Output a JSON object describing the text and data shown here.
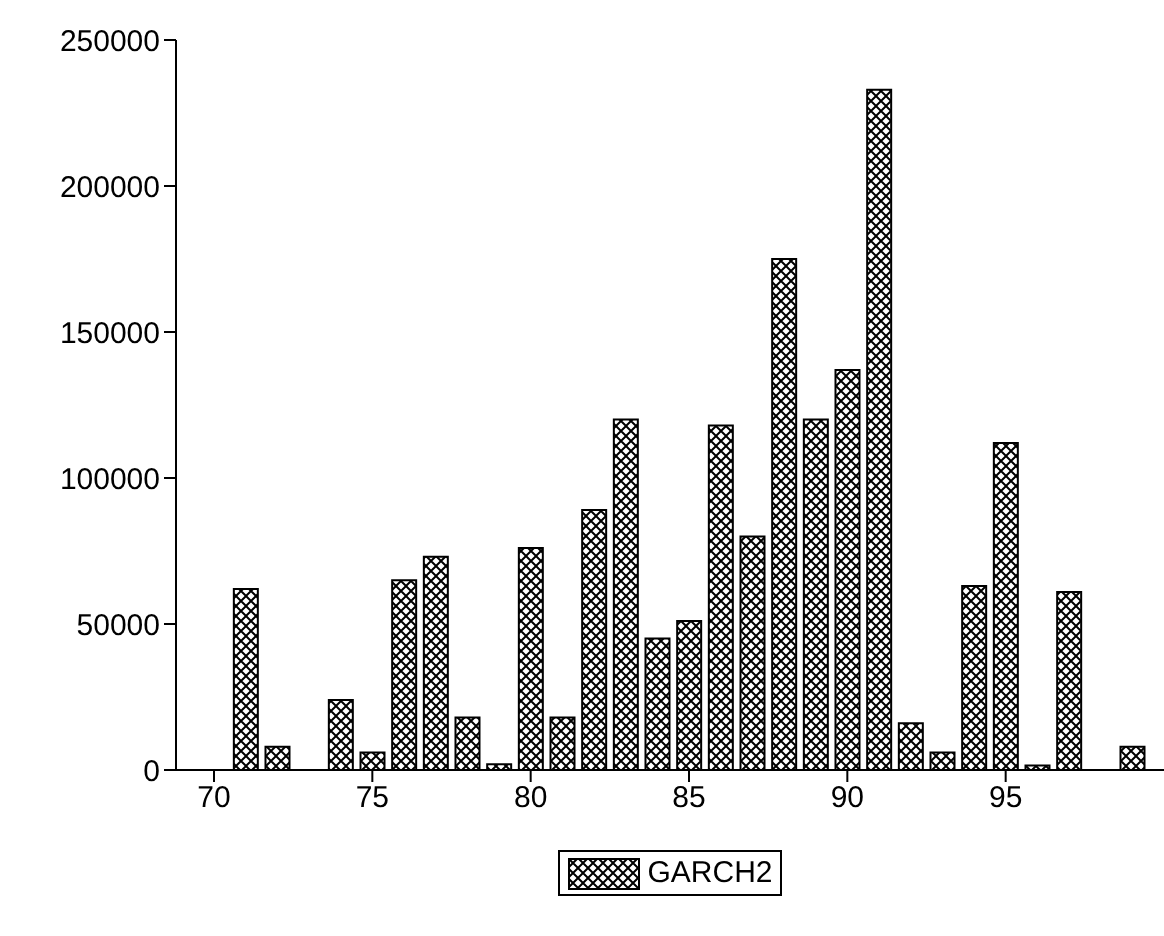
{
  "chart_data": {
    "type": "bar",
    "x": [
      71,
      72,
      73,
      74,
      75,
      76,
      77,
      78,
      79,
      80,
      81,
      82,
      83,
      84,
      85,
      86,
      87,
      88,
      89,
      90,
      91,
      92,
      93,
      94,
      95,
      96,
      97,
      98,
      99
    ],
    "series": [
      {
        "name": "GARCH2",
        "color": "#000000",
        "values": [
          62000,
          8000,
          0,
          24000,
          6000,
          65000,
          73000,
          18000,
          2000,
          76000,
          18000,
          89000,
          120000,
          45000,
          51000,
          118000,
          80000,
          175000,
          120000,
          137000,
          233000,
          16000,
          6000,
          63000,
          112000,
          1500,
          61000,
          0,
          8000
        ]
      }
    ],
    "xlim": [
      68.8,
      100
    ],
    "xticks": [
      70,
      75,
      80,
      85,
      90,
      95
    ],
    "ylim": [
      0,
      250000
    ],
    "yticks": [
      0,
      50000,
      100000,
      150000,
      200000,
      250000
    ],
    "grid": false,
    "legend": "bottom"
  }
}
